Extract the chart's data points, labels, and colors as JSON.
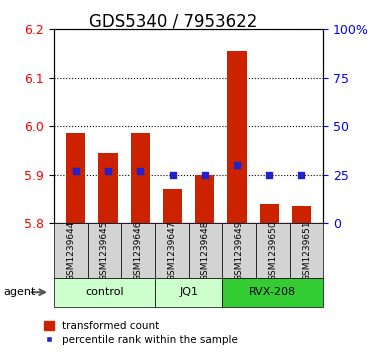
{
  "title": "GDS5340 / 7953622",
  "samples": [
    "GSM1239644",
    "GSM1239645",
    "GSM1239646",
    "GSM1239647",
    "GSM1239648",
    "GSM1239649",
    "GSM1239650",
    "GSM1239651"
  ],
  "transformed_counts": [
    5.985,
    5.945,
    5.985,
    5.87,
    5.9,
    6.155,
    5.84,
    5.835
  ],
  "percentile_ranks": [
    27,
    27,
    27,
    25,
    25,
    30,
    25,
    25
  ],
  "ylim_left": [
    5.8,
    6.2
  ],
  "ylim_right": [
    0,
    100
  ],
  "yticks_left": [
    5.8,
    5.9,
    6.0,
    6.1,
    6.2
  ],
  "yticks_right": [
    0,
    25,
    50,
    75,
    100
  ],
  "groups": [
    {
      "label": "control",
      "start": 0,
      "end": 3,
      "color": "#ccffcc"
    },
    {
      "label": "JQ1",
      "start": 3,
      "end": 5,
      "color": "#ccffcc"
    },
    {
      "label": "RVX-208",
      "start": 5,
      "end": 8,
      "color": "#33cc33"
    }
  ],
  "bar_color": "#cc2200",
  "dot_color": "#2222cc",
  "bar_bottom": 5.8,
  "bar_width": 0.6,
  "agent_label": "agent",
  "legend_bar_label": "transformed count",
  "legend_dot_label": "percentile rank within the sample",
  "title_fontsize": 12,
  "tick_fontsize": 9,
  "sample_fontsize": 6.5,
  "group_fontsize": 8,
  "legend_fontsize": 7.5,
  "agent_fontsize": 8,
  "ytick_right_labels": [
    "0",
    "25",
    "50",
    "75",
    "100%"
  ]
}
